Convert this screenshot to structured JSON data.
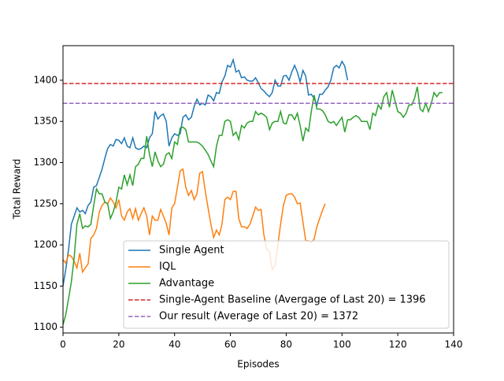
{
  "chart_data": {
    "type": "line",
    "xlabel": "Episodes",
    "ylabel": "Total Reward",
    "xlim": [
      0,
      140
    ],
    "xticks": [
      0,
      20,
      40,
      60,
      80,
      100,
      120,
      140
    ],
    "ylim": [
      1093,
      1442
    ],
    "yticks": [
      1100,
      1150,
      1200,
      1250,
      1300,
      1350,
      1400
    ],
    "legend": "lower right",
    "series": [
      {
        "name": "Single Agent",
        "color": "#1f77b4",
        "values": [
          1150,
          1170,
          1195,
          1225,
          1235,
          1245,
          1240,
          1242,
          1238,
          1248,
          1252,
          1270,
          1272,
          1282,
          1292,
          1305,
          1317,
          1322,
          1320,
          1328,
          1327,
          1323,
          1330,
          1320,
          1318,
          1330,
          1318,
          1316,
          1317,
          1320,
          1318,
          1330,
          1335,
          1362,
          1353,
          1357,
          1359,
          1350,
          1320,
          1330,
          1335,
          1333,
          1335,
          1355,
          1358,
          1352,
          1355,
          1368,
          1377,
          1370,
          1372,
          1370,
          1382,
          1380,
          1375,
          1385,
          1384,
          1398,
          1405,
          1418,
          1416,
          1425,
          1410,
          1412,
          1403,
          1404,
          1400,
          1399,
          1399,
          1403,
          1397,
          1390,
          1387,
          1383,
          1380,
          1385,
          1400,
          1393,
          1393,
          1405,
          1406,
          1400,
          1410,
          1418,
          1410,
          1398,
          1412,
          1405,
          1382,
          1383,
          1378,
          1370,
          1383,
          1383,
          1388,
          1392,
          1400,
          1415,
          1418,
          1415,
          1423,
          1417,
          1400
        ]
      },
      {
        "name": "IQL",
        "color": "#ff7f0e",
        "values": [
          1182,
          1178,
          1188,
          1186,
          1180,
          1172,
          1190,
          1167,
          1172,
          1177,
          1208,
          1212,
          1220,
          1240,
          1248,
          1252,
          1250,
          1257,
          1252,
          1245,
          1255,
          1235,
          1230,
          1240,
          1244,
          1232,
          1244,
          1230,
          1238,
          1245,
          1235,
          1212,
          1235,
          1230,
          1230,
          1243,
          1235,
          1226,
          1212,
          1245,
          1250,
          1270,
          1290,
          1292,
          1270,
          1260,
          1266,
          1255,
          1262,
          1287,
          1289,
          1265,
          1245,
          1225,
          1209,
          1218,
          1212,
          1225,
          1255,
          1258,
          1255,
          1265,
          1265,
          1232,
          1222,
          1222,
          1220,
          1225,
          1235,
          1246,
          1242,
          1243,
          1212,
          1195,
          1192,
          1170,
          1175,
          1200,
          1225,
          1248,
          1260,
          1262,
          1262,
          1258,
          1250,
          1251,
          1228,
          1205,
          1205,
          1203,
          1207,
          1222,
          1232,
          1242,
          1250
        ]
      },
      {
        "name": "Advantage",
        "color": "#2ca02c",
        "values": [
          1103,
          1115,
          1135,
          1155,
          1185,
          1225,
          1238,
          1220,
          1223,
          1222,
          1225,
          1248,
          1268,
          1262,
          1262,
          1252,
          1250,
          1232,
          1240,
          1252,
          1270,
          1268,
          1285,
          1273,
          1285,
          1272,
          1295,
          1298,
          1305,
          1305,
          1332,
          1310,
          1295,
          1313,
          1302,
          1295,
          1298,
          1310,
          1312,
          1305,
          1325,
          1322,
          1342,
          1343,
          1340,
          1325,
          1325,
          1325,
          1325,
          1323,
          1320,
          1315,
          1310,
          1302,
          1295,
          1320,
          1333,
          1333,
          1350,
          1352,
          1350,
          1333,
          1337,
          1328,
          1345,
          1342,
          1348,
          1350,
          1350,
          1362,
          1358,
          1360,
          1358,
          1355,
          1340,
          1348,
          1350,
          1350,
          1362,
          1348,
          1347,
          1358,
          1358,
          1352,
          1360,
          1345,
          1326,
          1342,
          1338,
          1362,
          1382,
          1365,
          1365,
          1363,
          1358,
          1350,
          1348,
          1350,
          1345,
          1350,
          1355,
          1337,
          1352,
          1352,
          1355,
          1357,
          1355,
          1350,
          1350,
          1350,
          1340,
          1360,
          1357,
          1370,
          1365,
          1380,
          1385,
          1367,
          1388,
          1375,
          1362,
          1360,
          1355,
          1360,
          1370,
          1370,
          1378,
          1392,
          1365,
          1362,
          1372,
          1362,
          1372,
          1385,
          1380,
          1385,
          1385
        ]
      }
    ],
    "hlines": [
      {
        "name": "Single-Agent Baseline (Avergage of Last 20) = 1396",
        "color": "#d62728",
        "value": 1396
      },
      {
        "name": "Our result (Average of Last 20) = 1372",
        "color": "#9467bd",
        "value": 1372
      }
    ]
  }
}
